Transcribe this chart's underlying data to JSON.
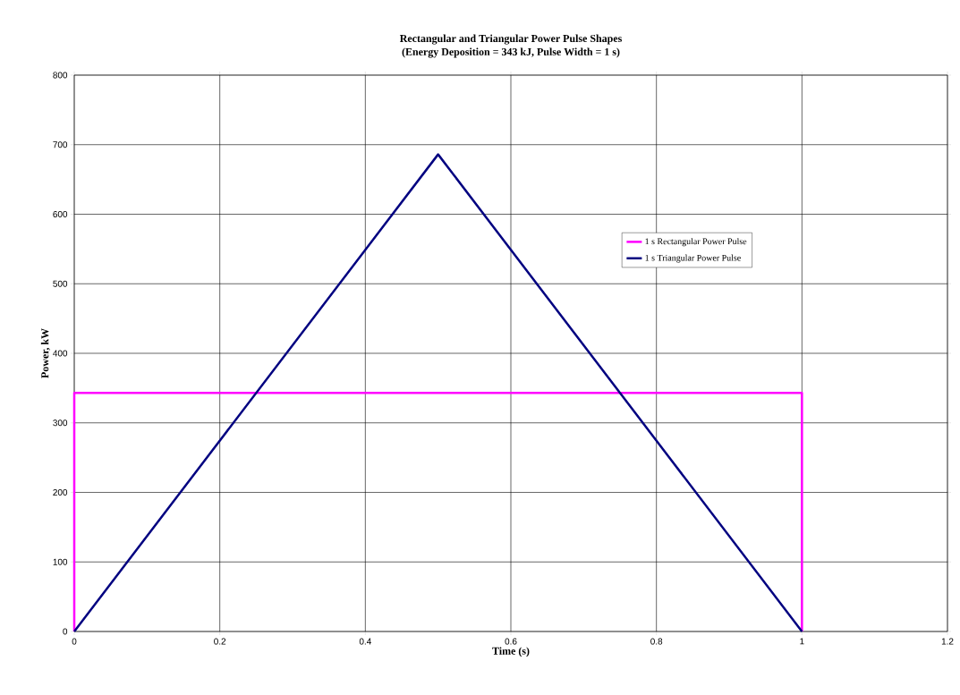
{
  "chart_data": {
    "type": "line",
    "title": "Rectangular and Triangular Power Pulse Shapes",
    "subtitle": "(Energy Deposition = 343 kJ, Pulse Width = 1 s)",
    "xlabel": "Time (s)",
    "ylabel": "Power, kW",
    "xlim": [
      0,
      1.2
    ],
    "ylim": [
      0,
      800
    ],
    "xticks": [
      0,
      0.2,
      0.4,
      0.6,
      0.8,
      1,
      1.2
    ],
    "yticks": [
      0,
      100,
      200,
      300,
      400,
      500,
      600,
      700,
      800
    ],
    "grid": true,
    "legend": "right",
    "series": [
      {
        "name": "1 s Rectangular Power Pulse",
        "color": "#ff00ff",
        "x": [
          0,
          0,
          1,
          1
        ],
        "values": [
          0,
          343,
          343,
          0
        ]
      },
      {
        "name": "1 s Triangular Power Pulse",
        "color": "#000080",
        "x": [
          0,
          0.5,
          1
        ],
        "values": [
          0,
          686,
          0
        ]
      }
    ]
  }
}
